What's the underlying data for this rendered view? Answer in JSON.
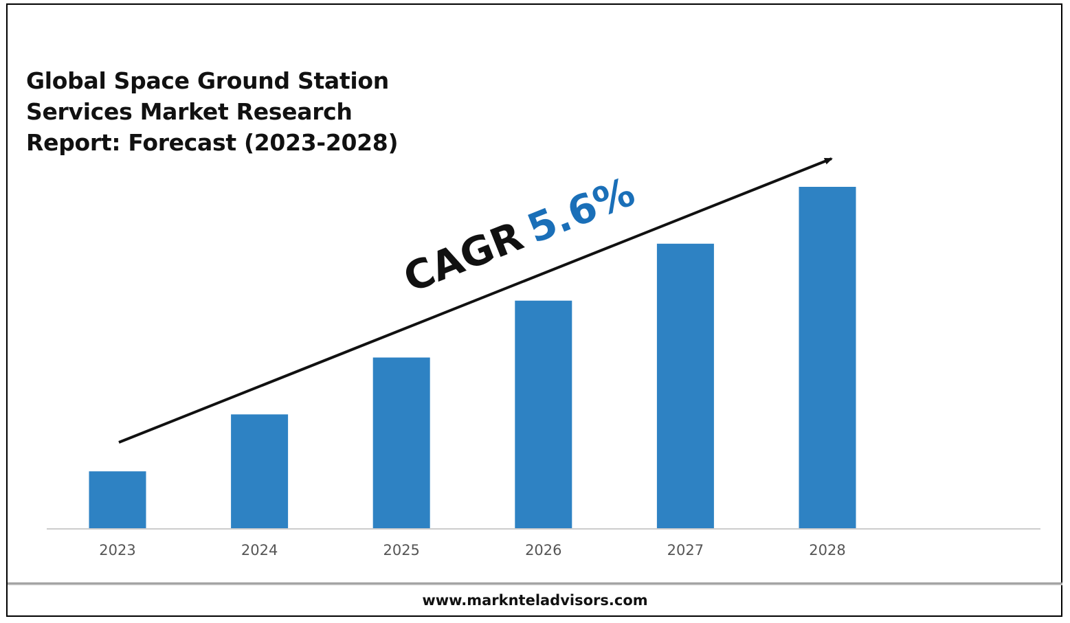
{
  "title": "Global Space Ground Station Services Market Research Report: Forecast (2023-2028)",
  "annotation": {
    "prefix": "CAGR",
    "value": "5.6%"
  },
  "footer": {
    "url": "www.marknteladvisors.com"
  },
  "colors": {
    "bar": "#2e82c3",
    "accent": "#1a6fb8",
    "text": "#111111",
    "axis": "#cccccc"
  },
  "chart_data": {
    "type": "bar",
    "categories": [
      "2023",
      "2024",
      "2025",
      "2026",
      "2027",
      "2028"
    ],
    "values": [
      1,
      2,
      3,
      4,
      5,
      6
    ],
    "ylim": [
      0,
      6
    ],
    "grid": false,
    "legend": "none"
  }
}
